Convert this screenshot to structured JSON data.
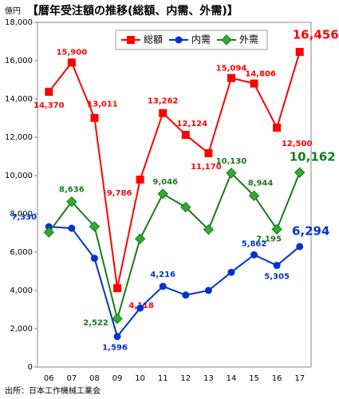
{
  "chart_data": {
    "type": "line",
    "title": "【暦年受注額の推移(総額、内需、外需)】",
    "y_unit": "億円",
    "source": "出所：日本工作機械工業会",
    "categories": [
      "06",
      "07",
      "08",
      "09",
      "10",
      "11",
      "12",
      "13",
      "14",
      "15",
      "16",
      "17"
    ],
    "ylim": [
      0,
      18000
    ],
    "yticks": [
      {
        "value": 0,
        "label": "0"
      },
      {
        "value": 2000,
        "label": "2,000"
      },
      {
        "value": 4000,
        "label": "4,000"
      },
      {
        "value": 6000,
        "label": "6,000"
      },
      {
        "value": 8000,
        "label": "8,000"
      },
      {
        "value": 10000,
        "label": "10,000"
      },
      {
        "value": 12000,
        "label": "12,000"
      },
      {
        "value": 14000,
        "label": "14,000"
      },
      {
        "value": 16000,
        "label": "16,000"
      },
      {
        "value": 18000,
        "label": "18,000"
      }
    ],
    "grid": false,
    "series": [
      {
        "name": "総額",
        "color": "#ff0000",
        "marker": "square",
        "values": [
          14370,
          15900,
          13011,
          4118,
          9786,
          13262,
          12124,
          11170,
          15094,
          14806,
          12500,
          16456
        ],
        "value_labels": [
          "14,370",
          "15,900",
          "13,011",
          "4,118",
          "9,786",
          "13,262",
          "12,124",
          "11,170",
          "15,094",
          "14,806",
          "12,500",
          "16,456"
        ]
      },
      {
        "name": "内需",
        "color": "#0033cc",
        "marker": "circle",
        "values": [
          7330,
          7250,
          5680,
          1596,
          3080,
          4216,
          3760,
          4000,
          4950,
          5862,
          5305,
          6294
        ],
        "value_labels": [
          "7,330",
          null,
          null,
          "1,596",
          null,
          "4,216",
          null,
          null,
          null,
          "5,862",
          "5,305",
          "6,294"
        ]
      },
      {
        "name": "外需",
        "color": "#1a7a1a",
        "marker": "diamond",
        "values": [
          7040,
          8636,
          7340,
          2522,
          6700,
          9046,
          8350,
          7180,
          10130,
          8944,
          7195,
          10162
        ],
        "value_labels": [
          null,
          "8,636",
          null,
          "2,522",
          null,
          "9,046",
          null,
          null,
          "10,130",
          "8,944",
          "7,195",
          "10,162"
        ]
      }
    ]
  }
}
